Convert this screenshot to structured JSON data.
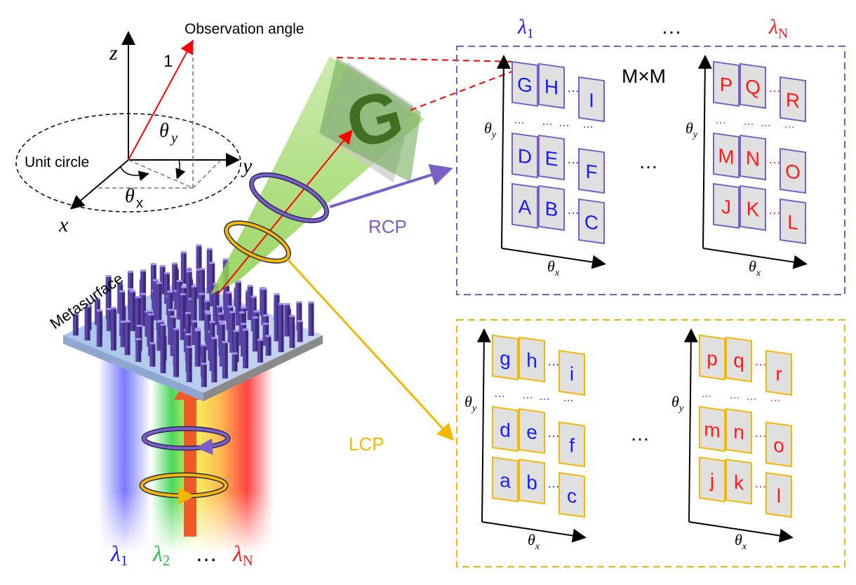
{
  "labels": {
    "observation_angle": "Observation angle",
    "unit_vector": "1",
    "axis_z": "z",
    "axis_y": "y",
    "axis_x": "x",
    "theta_y": "θ",
    "theta_y_sub": "y",
    "theta_x": "θ",
    "theta_x_sub": "x",
    "unit_circle": "Unit circle",
    "metasurface": "Metasurface",
    "rcp": "RCP",
    "lcp": "LCP",
    "hologram_letter": "G",
    "matrix_size": "M×M",
    "ellipsis": "…"
  },
  "wavelengths_bottom": [
    {
      "sym": "λ",
      "sub": "1",
      "color": "#1a1aff"
    },
    {
      "sym": "λ",
      "sub": "2",
      "color": "#22c03a"
    },
    {
      "sym": "…",
      "sub": "",
      "color": "#000000"
    },
    {
      "sym": "λ",
      "sub": "N",
      "color": "#ff1a1a"
    }
  ],
  "wavelengths_top": [
    {
      "sym": "λ",
      "sub": "1",
      "color": "#1a1aff"
    },
    {
      "sym": "…",
      "sub": "",
      "color": "#000000"
    },
    {
      "sym": "λ",
      "sub": "N",
      "color": "#ff1a1a"
    }
  ],
  "panels": [
    {
      "group": "rcp",
      "letters": [
        "G",
        "H",
        "I",
        "D",
        "E",
        "F",
        "A",
        "B",
        "C"
      ],
      "letter_color": "#1a1aff",
      "dots_color": "#1a1aff"
    },
    {
      "group": "rcp",
      "letters": [
        "P",
        "Q",
        "R",
        "M",
        "N",
        "O",
        "J",
        "K",
        "L"
      ],
      "letter_color": "#ff1a1a",
      "dots_color": "#ff1a1a"
    },
    {
      "group": "lcp",
      "letters": [
        "g",
        "h",
        "i",
        "d",
        "e",
        "f",
        "a",
        "b",
        "c"
      ],
      "letter_color": "#1a1aff",
      "dots_color": "#1a1aff"
    },
    {
      "group": "lcp",
      "letters": [
        "p",
        "q",
        "r",
        "m",
        "n",
        "o",
        "j",
        "k",
        "l"
      ],
      "letter_color": "#ff1a1a",
      "dots_color": "#ff1a1a"
    }
  ],
  "colors": {
    "rcp": "#7b5fc8",
    "lcp": "#f5b800",
    "beam": "#8fd14f",
    "observation": "#ff0000",
    "pillar": "#8a6fd6",
    "substrate": "#a9c4ec"
  }
}
